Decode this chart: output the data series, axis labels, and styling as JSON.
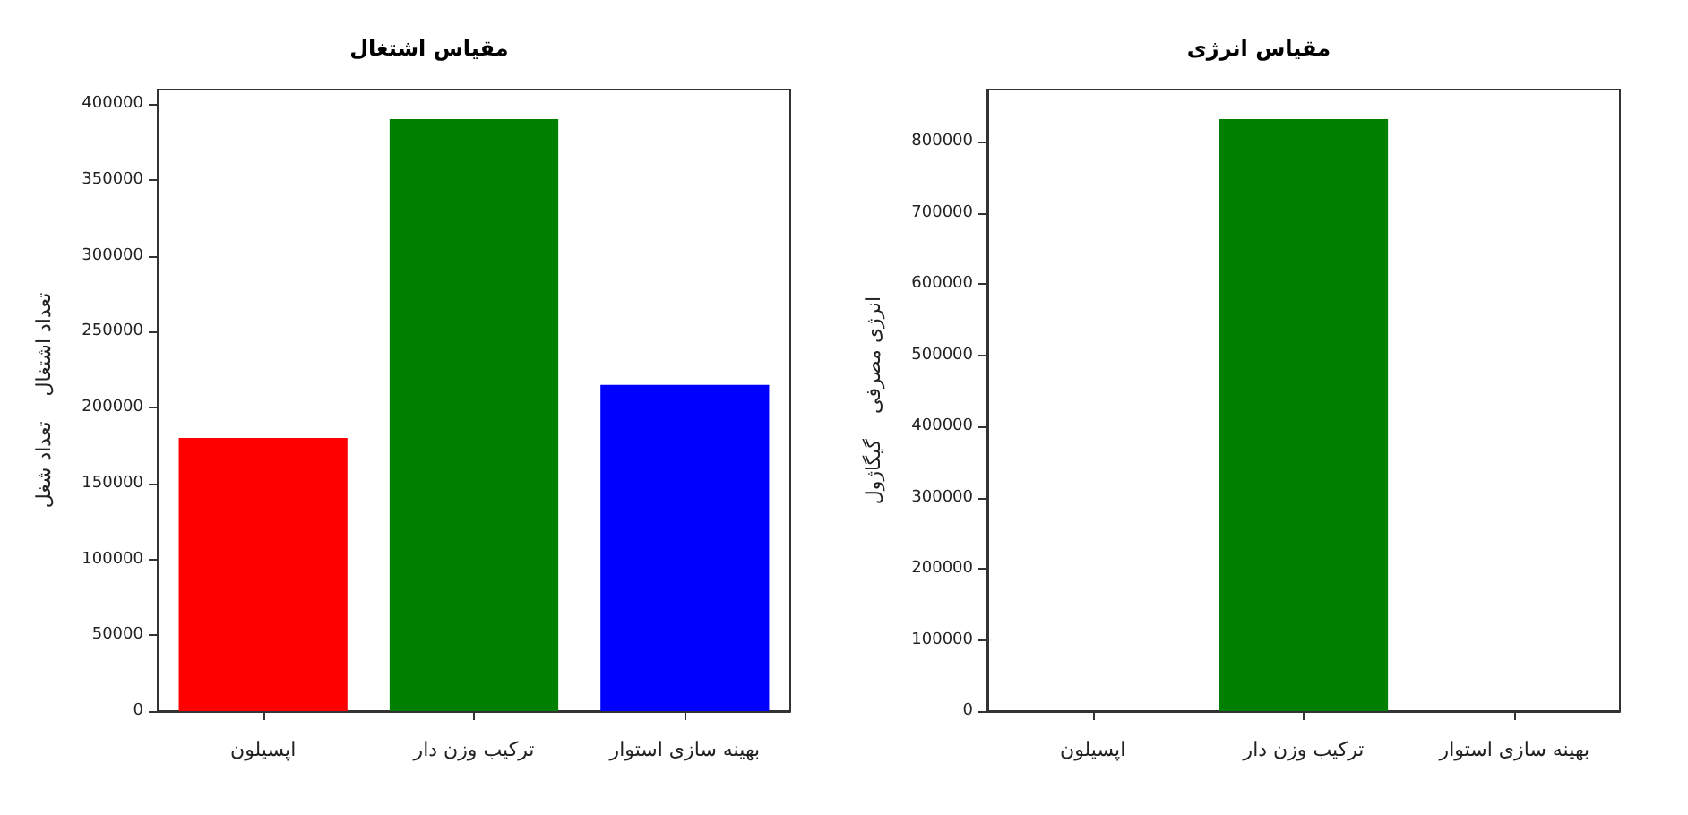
{
  "chart_data": [
    {
      "type": "bar",
      "title": "مقیاس اشتغال",
      "ylabel": "تعداد اشتغال    تعداد شغل",
      "categories": [
        "اپسیلون",
        "ترکیب وزن دار",
        "بهینه سازی استوار"
      ],
      "values": [
        180000,
        390000,
        215000
      ],
      "colors": [
        "#ff0000",
        "#008000",
        "#0000ff"
      ],
      "ylim": [
        0,
        409500
      ],
      "yticks": [
        0,
        50000,
        100000,
        150000,
        200000,
        250000,
        300000,
        350000,
        400000
      ]
    },
    {
      "type": "bar",
      "title": "مقیاس انرژی",
      "ylabel": "انرژی مصرفی    گیگاژول",
      "categories": [
        "اپسیلون",
        "ترکیب وزن دار",
        "بهینه سازی استوار"
      ],
      "values": [
        0,
        832000,
        0
      ],
      "colors": [
        "#ff0000",
        "#008000",
        "#0000ff"
      ],
      "ylim": [
        0,
        873600
      ],
      "yticks": [
        0,
        100000,
        200000,
        300000,
        400000,
        500000,
        600000,
        700000,
        800000
      ]
    }
  ]
}
